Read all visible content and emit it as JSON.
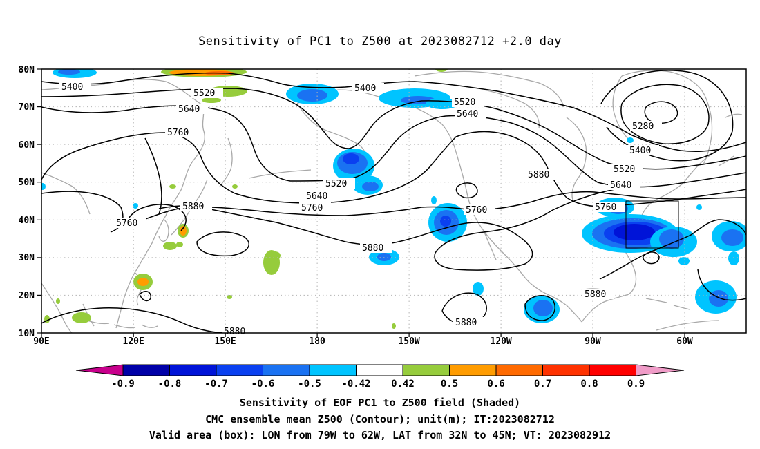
{
  "title": "Sensitivity of PC1 to Z500 at 2023082712 +2.0 day",
  "lat_labels": [
    "80N",
    "70N",
    "60N",
    "50N",
    "40N",
    "30N",
    "20N",
    "10N"
  ],
  "lon_labels": [
    "90E",
    "120E",
    "150E",
    "180",
    "150W",
    "120W",
    "90W",
    "60W"
  ],
  "contour_labels": [
    "5400",
    "5520",
    "5640",
    "5760",
    "5760",
    "5880",
    "5400",
    "5520",
    "5640",
    "5520",
    "5640",
    "5760",
    "5880",
    "5760",
    "5880",
    "5280",
    "5400",
    "5520",
    "5640",
    "5760",
    "5880",
    "5880",
    "5880"
  ],
  "colorbar": {
    "labels": [
      "-0.9",
      "-0.8",
      "-0.7",
      "-0.6",
      "-0.5",
      "-0.42",
      "0.42",
      "0.5",
      "0.6",
      "0.7",
      "0.8",
      "0.9"
    ],
    "colors": [
      "#0000a8",
      "#0014d8",
      "#0a40f0",
      "#1a72f2",
      "#00c4ff",
      "#ffffff",
      "#96cc3c",
      "#ff9c00",
      "#ff6a00",
      "#ff3200",
      "#ff0000"
    ],
    "low_end_color": "#c8008c",
    "high_end_color": "#f09cc8"
  },
  "captions": [
    "Sensitivity of EOF PC1 to Z500 field (Shaded)",
    "CMC ensemble mean Z500 (Contour); unit(m); IT:2023082712",
    "Valid area (box): LON from 79W to 62W, LAT from 32N to 45N; VT: 2023082912"
  ]
}
